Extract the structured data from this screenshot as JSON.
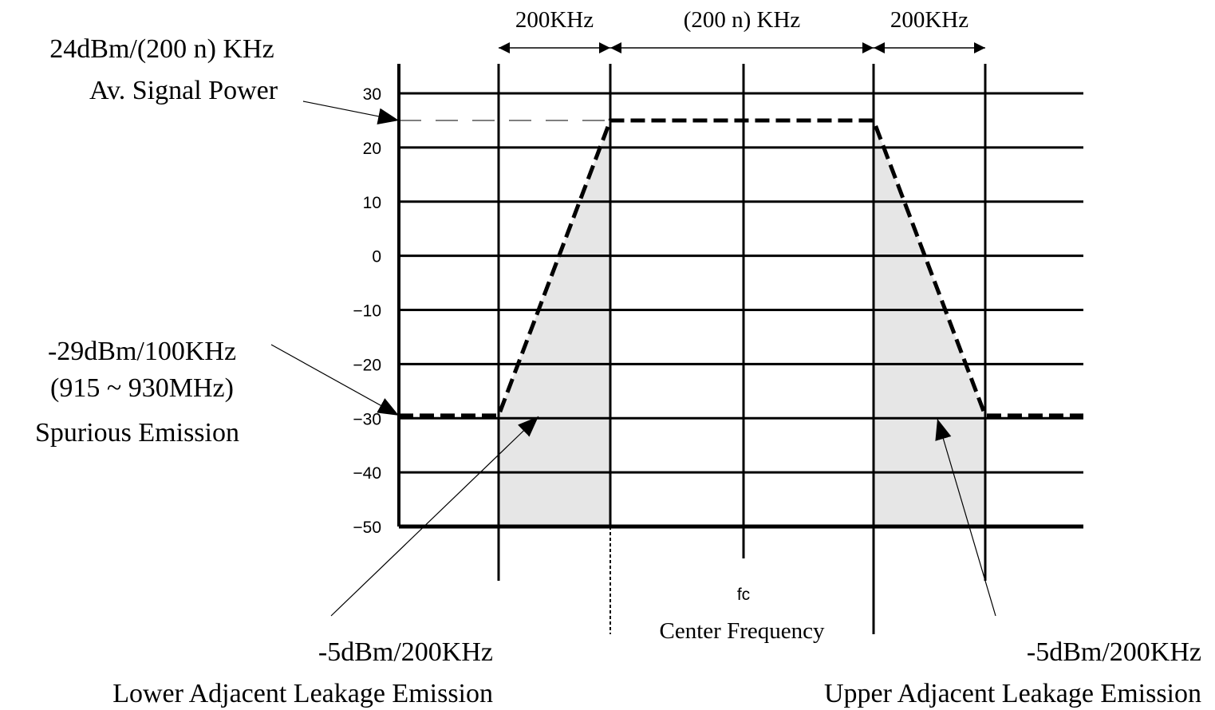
{
  "chart_data": {
    "type": "mask",
    "ylim": [
      -50,
      30
    ],
    "yticks": [
      30,
      20,
      10,
      0,
      {
        "value": -10,
        "label": "−10"
      },
      {
        "value": -20,
        "label": "−20"
      },
      {
        "value": -30,
        "label": "−30"
      },
      {
        "value": -40,
        "label": "−40"
      },
      {
        "value": -50,
        "label": "−50"
      }
    ],
    "mask_levels": {
      "inband": 25,
      "spurious": -29.5
    },
    "dimensions": [
      "200KHz",
      "(200 n) KHz",
      "200KHz"
    ],
    "annotations": {
      "signal": [
        "24dBm/(200 n) KHz",
        "Av. Signal Power"
      ],
      "spurious": [
        "-29dBm/100KHz",
        "(915 ~ 930MHz)",
        "Spurious Emission"
      ],
      "lower": [
        "-5dBm/200KHz",
        "Lower Adjacent Leakage Emission"
      ],
      "upper": [
        "-5dBm/200KHz",
        "Upper Adjacent Leakage Emission"
      ]
    },
    "center": {
      "symbol": "fc",
      "label": "Center Frequency"
    }
  }
}
